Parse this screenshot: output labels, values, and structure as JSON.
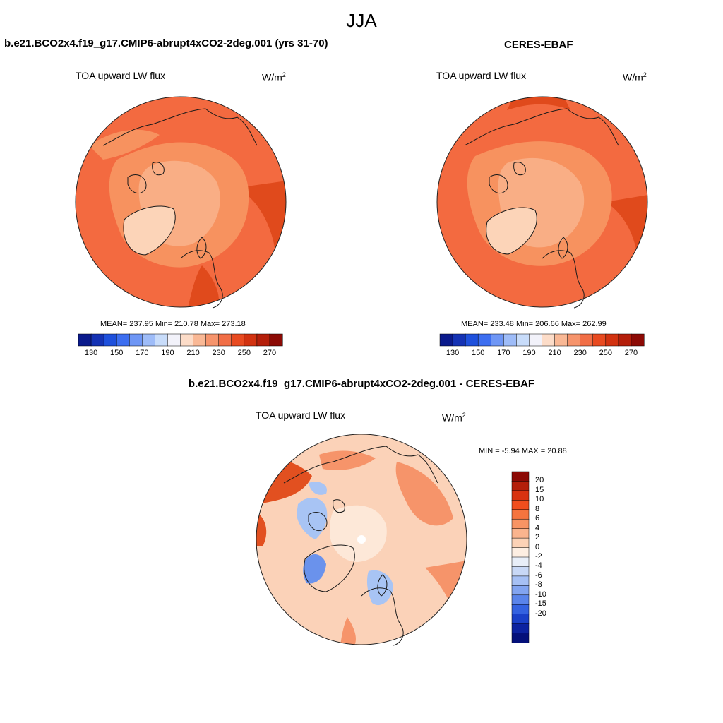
{
  "season": "JJA",
  "left_panel": {
    "title": "b.e21.BCO2x4.f19_g17.CMIP6-abrupt4xCO2-2deg.001 (yrs 31-70)",
    "variable": "TOA upward LW flux",
    "units_base": "W/m",
    "units_exp": "2",
    "stats": "MEAN= 237.95  Min= 210.78  Max= 273.18"
  },
  "right_panel": {
    "title": "CERES-EBAF",
    "variable": "TOA upward LW flux",
    "units_base": "W/m",
    "units_exp": "2",
    "stats": "MEAN= 233.48  Min= 206.66  Max= 262.99"
  },
  "diff_panel": {
    "title": "b.e21.BCO2x4.f19_g17.CMIP6-abrupt4xCO2-2deg.001 - CERES-EBAF",
    "variable": "TOA upward LW flux",
    "units_base": "W/m",
    "units_exp": "2",
    "stats": "MIN =  -5.94 MAX =  20.88"
  },
  "abs_colorbar": {
    "colors": [
      "#0a1a8c",
      "#1432b4",
      "#1e50dc",
      "#3c6ef0",
      "#6e96f5",
      "#9ebcf8",
      "#c8dcfa",
      "#f2f2fa",
      "#fcdcc8",
      "#f9b895",
      "#f6946c",
      "#f16e46",
      "#e84a20",
      "#d23210",
      "#b41e0a",
      "#8c0a05"
    ],
    "ticks": [
      "130",
      "150",
      "170",
      "190",
      "210",
      "230",
      "250",
      "270"
    ]
  },
  "diff_colorbar": {
    "colors": [
      "#8c0a05",
      "#b41e0a",
      "#d83210",
      "#f04e1e",
      "#f5743e",
      "#f89464",
      "#fab48e",
      "#fcd2b6",
      "#fdeee2",
      "#e8eef8",
      "#c8d8f6",
      "#a6c0f4",
      "#82a4f0",
      "#5a84ea",
      "#3462e0",
      "#1a40c8",
      "#0c22a0",
      "#04107a"
    ],
    "ticks": [
      "20",
      "15",
      "10",
      "8",
      "6",
      "4",
      "2",
      "0",
      "-2",
      "-4",
      "-6",
      "-8",
      "-10",
      "-15",
      "-20"
    ]
  },
  "map_palette": {
    "ocean_warm": "#f36a40",
    "deep_warm": "#e04a1c",
    "mid": "#f7925f",
    "arctic": "#f9ae85",
    "ice_cool": "#fcd4b8",
    "diff_base": "#fbd2b8",
    "diff_pale": "#fde8d8",
    "diff_warm": "#f6946a",
    "diff_hot": "#e25020",
    "diff_blue": "#a8c4f4",
    "diff_blue_deep": "#6a92ec"
  }
}
